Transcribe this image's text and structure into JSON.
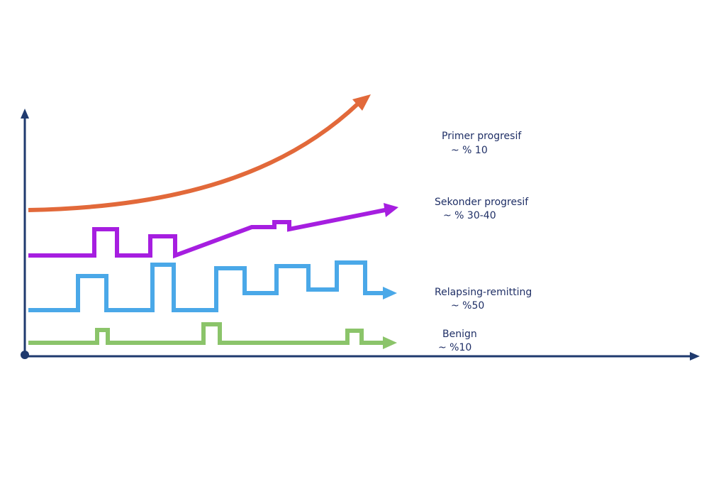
{
  "courses": [
    {
      "name": "Primer progresif",
      "share": "~ % 10"
    },
    {
      "name": "Sekonder progresif",
      "share": "~ % 30-40"
    },
    {
      "name": "Relapsing-remitting",
      "share": "~ %50"
    },
    {
      "name": "Benign",
      "share": "~ %10"
    }
  ]
}
